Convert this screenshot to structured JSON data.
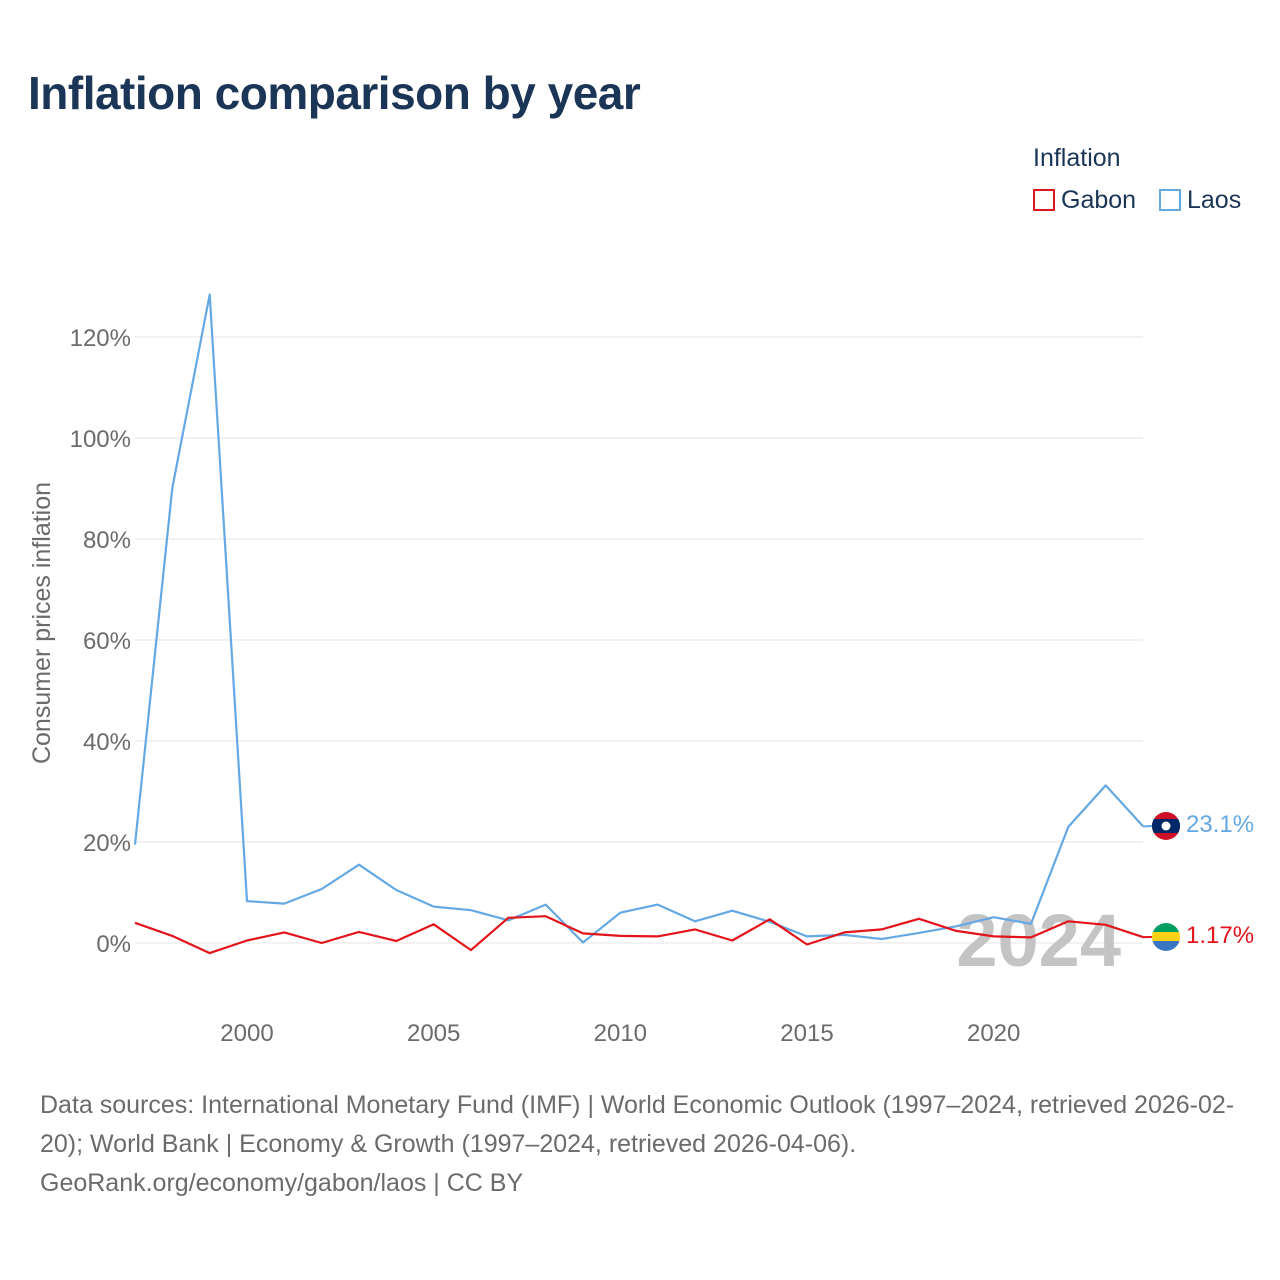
{
  "title": "Inflation comparison by year",
  "legend": {
    "title": "Inflation",
    "items": [
      {
        "label": "Gabon",
        "color": "#e3141b"
      },
      {
        "label": "Laos",
        "color": "#64a8e4"
      }
    ]
  },
  "chart_data": {
    "type": "line",
    "title": "Inflation comparison by year",
    "xlabel": "",
    "ylabel": "Consumer prices inflation",
    "xlim": [
      1997,
      2024
    ],
    "ylim": [
      -10,
      135
    ],
    "x_ticks": [
      2000,
      2005,
      2010,
      2015,
      2020
    ],
    "y_ticks": [
      0,
      20,
      40,
      60,
      80,
      100,
      120
    ],
    "y_tick_labels": [
      "0%",
      "20%",
      "40%",
      "60%",
      "80%",
      "100%",
      "120%"
    ],
    "grid": true,
    "year_watermark": "2024",
    "x": [
      1997,
      1998,
      1999,
      2000,
      2001,
      2002,
      2003,
      2004,
      2005,
      2006,
      2007,
      2008,
      2009,
      2010,
      2011,
      2012,
      2013,
      2014,
      2015,
      2016,
      2017,
      2018,
      2019,
      2020,
      2021,
      2022,
      2023,
      2024
    ],
    "series": [
      {
        "name": "Laos",
        "color": "#64a8e4",
        "end_label": "23.1%",
        "values": [
          19.5,
          90.1,
          128.4,
          8.3,
          7.8,
          10.7,
          15.5,
          10.5,
          7.2,
          6.5,
          4.5,
          7.6,
          0.1,
          6.0,
          7.6,
          4.3,
          6.4,
          4.2,
          1.3,
          1.6,
          0.8,
          2.0,
          3.3,
          5.1,
          3.8,
          23.0,
          31.2,
          23.1
        ]
      },
      {
        "name": "Gabon",
        "color": "#e3141b",
        "end_label": "1.17%",
        "values": [
          4.0,
          1.4,
          -2.0,
          0.5,
          2.1,
          0.0,
          2.2,
          0.4,
          3.7,
          -1.4,
          5.0,
          5.3,
          1.9,
          1.4,
          1.3,
          2.7,
          0.5,
          4.7,
          -0.3,
          2.1,
          2.7,
          4.8,
          2.4,
          1.3,
          1.1,
          4.3,
          3.6,
          1.17
        ]
      }
    ]
  },
  "sources": {
    "line1": "Data sources: International Monetary Fund (IMF) | World Economic Outlook (1997–2024, retrieved 2026-02-20); World Bank | Economy & Growth (1997–2024, retrieved 2026-04-06).",
    "line2": "GeoRank.org/economy/gabon/laos | CC BY"
  }
}
